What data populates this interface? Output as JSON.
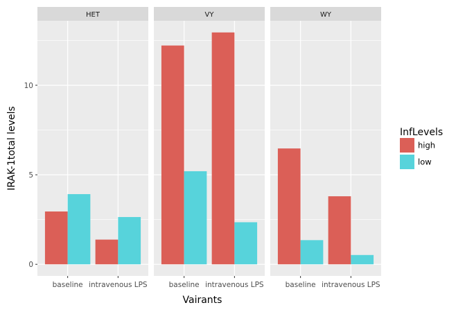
{
  "chart_data": {
    "type": "bar",
    "facets": [
      "HET",
      "VY",
      "WY"
    ],
    "categories": [
      "baseline",
      "intravenous LPS"
    ],
    "series": [
      {
        "name": "high",
        "color": "#DB5F57",
        "values": {
          "HET": [
            2.95,
            1.38
          ],
          "VY": [
            12.22,
            12.95
          ],
          "WY": [
            6.47,
            3.8
          ]
        }
      },
      {
        "name": "low",
        "color": "#57D3DB",
        "values": {
          "HET": [
            3.92,
            2.64
          ],
          "VY": [
            5.2,
            2.35
          ],
          "WY": [
            1.35,
            0.52
          ]
        }
      }
    ],
    "xlabel": "Vairants",
    "ylabel": "IRAK-1total levels",
    "yticks": [
      0,
      5,
      10
    ],
    "ylim": [
      -0.65,
      13.6
    ],
    "legend": {
      "title": "InfLevels",
      "position": "right"
    },
    "grid": true
  }
}
